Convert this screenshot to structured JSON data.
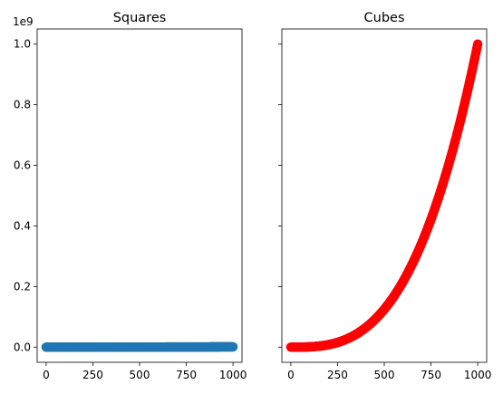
{
  "chart_data": [
    {
      "type": "scatter",
      "title": "Squares",
      "offset_label": "1e9",
      "xlim": [
        -48,
        1048
      ],
      "ylim": [
        -0.05,
        1.05
      ],
      "x_ticks": [
        0,
        250,
        500,
        750,
        1000
      ],
      "x_tick_labels": [
        "0",
        "250",
        "500",
        "750",
        "1000"
      ],
      "y_ticks": [
        0.0,
        0.2,
        0.4,
        0.6,
        0.8,
        1.0
      ],
      "y_tick_labels": [
        "0.0",
        "0.2",
        "0.4",
        "0.6",
        "0.8",
        "1.0"
      ],
      "series": [
        {
          "color": "#1f77b4",
          "x_range": [
            0,
            1000
          ],
          "function": "x^2 (in units of 1e9)"
        }
      ],
      "grid": false
    },
    {
      "type": "scatter",
      "title": "Cubes",
      "xlim": [
        -48,
        1048
      ],
      "ylim": [
        -0.05,
        1.05
      ],
      "x_ticks": [
        0,
        250,
        500,
        750,
        1000
      ],
      "x_tick_labels": [
        "0",
        "250",
        "500",
        "750",
        "1000"
      ],
      "y_ticks": [
        0.0,
        0.2,
        0.4,
        0.6,
        0.8,
        1.0
      ],
      "shared_y": true,
      "series": [
        {
          "color": "#ff0000",
          "x_range": [
            0,
            1000
          ],
          "function": "x^3 (in units of 1e9)"
        }
      ],
      "grid": false
    }
  ]
}
